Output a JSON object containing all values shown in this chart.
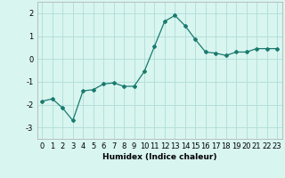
{
  "x": [
    0,
    1,
    2,
    3,
    4,
    5,
    6,
    7,
    8,
    9,
    10,
    11,
    12,
    13,
    14,
    15,
    16,
    17,
    18,
    19,
    20,
    21,
    22,
    23
  ],
  "y": [
    -1.85,
    -1.75,
    -2.15,
    -2.7,
    -1.4,
    -1.35,
    -1.1,
    -1.05,
    -1.2,
    -1.2,
    -0.55,
    0.55,
    1.65,
    1.9,
    1.45,
    0.85,
    0.3,
    0.25,
    0.15,
    0.3,
    0.3,
    0.45,
    0.45,
    0.45
  ],
  "line_color": "#1a7a6e",
  "marker": "D",
  "markersize": 2.0,
  "linewidth": 0.9,
  "xlabel": "Humidex (Indice chaleur)",
  "bg_color": "#d8f5f0",
  "grid_color": "#b0ddd8",
  "xlim": [
    -0.5,
    23.5
  ],
  "ylim": [
    -3.5,
    2.5
  ],
  "yticks": [
    -3,
    -2,
    -1,
    0,
    1,
    2
  ],
  "xticks": [
    0,
    1,
    2,
    3,
    4,
    5,
    6,
    7,
    8,
    9,
    10,
    11,
    12,
    13,
    14,
    15,
    16,
    17,
    18,
    19,
    20,
    21,
    22,
    23
  ],
  "xlabel_fontsize": 6.5,
  "tick_fontsize": 6.0
}
